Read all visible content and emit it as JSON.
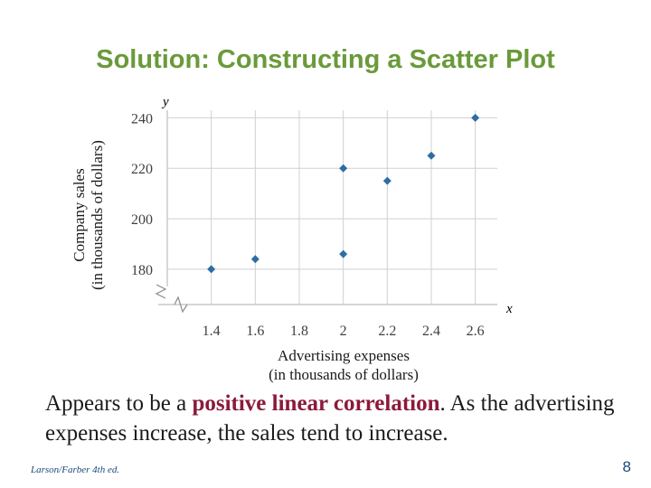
{
  "title": "Solution: Constructing a Scatter Plot",
  "caption": {
    "part1": "Appears to be a ",
    "highlight": "positive linear correlation",
    "part2": ". As the advertising expenses increase, the sales tend to increase."
  },
  "footer": {
    "left": "Larson/Farber 4th ed.",
    "page": "8"
  },
  "colors": {
    "title": "#6a9a3a",
    "marker": "#2e6da4",
    "highlight": "#8b1a3a"
  },
  "chart_data": {
    "type": "scatter",
    "x_axis_letter": "x",
    "y_axis_letter": "y",
    "xlabel_line1": "Advertising expenses",
    "xlabel_line2": "(in thousands of dollars)",
    "ylabel_line1": "Company sales",
    "ylabel_line2": "(in thousands of dollars)",
    "x_ticks": [
      "1.4",
      "1.6",
      "1.8",
      "2",
      "2.2",
      "2.4",
      "2.6"
    ],
    "y_ticks": [
      "180",
      "200",
      "220",
      "240"
    ],
    "xlim": [
      1.2,
      2.7
    ],
    "ylim": [
      166,
      243
    ],
    "grid": true,
    "axis_break": true,
    "points": [
      {
        "x": 2.4,
        "y": 225
      },
      {
        "x": 1.6,
        "y": 184
      },
      {
        "x": 2.0,
        "y": 186
      },
      {
        "x": 2.6,
        "y": 240
      },
      {
        "x": 2.0,
        "y": 220
      },
      {
        "x": 1.4,
        "y": 180
      },
      {
        "x": 2.2,
        "y": 215
      }
    ]
  }
}
